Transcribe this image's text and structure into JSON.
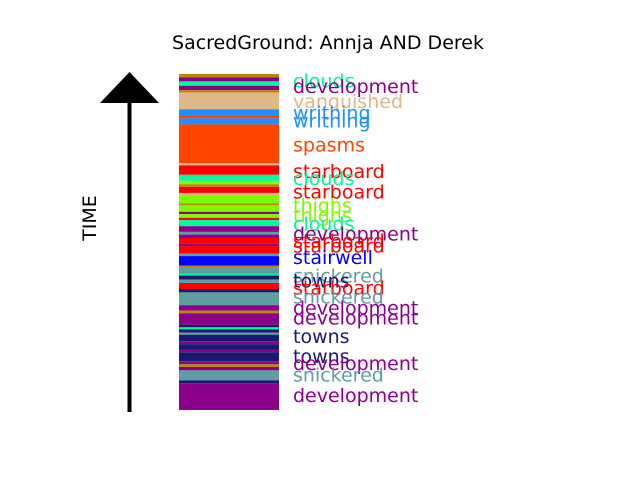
{
  "chart_data": {
    "type": "bar",
    "title": "SacredGround: Annja AND Derek",
    "ylabel": "TIME",
    "xlabel": "",
    "arrow": "up",
    "colors": {
      "development": "#8b008b",
      "clouds": "#00fa9a",
      "vanquished": "#deb887",
      "writhing": "#1e90ff",
      "spasms": "#ff4500",
      "starboard": "#ff0000",
      "thighs": "#7cfc00",
      "stairwell": "#0000ff",
      "snickered": "#5f9ea0",
      "towns": "#191970",
      "filler": "#b8860b"
    },
    "labels": [
      {
        "text": "clouds",
        "term": "clouds",
        "pos": 0.98
      },
      {
        "text": "development",
        "term": "development",
        "pos": 0.965
      },
      {
        "text": "vanquished",
        "term": "vanquished",
        "pos": 0.92
      },
      {
        "text": "writhing",
        "term": "writhing",
        "pos": 0.885
      },
      {
        "text": "writhing",
        "term": "writhing",
        "pos": 0.862
      },
      {
        "text": "spasms",
        "term": "spasms",
        "pos": 0.79
      },
      {
        "text": "starboard",
        "term": "starboard",
        "pos": 0.712
      },
      {
        "text": "clouds",
        "term": "clouds",
        "pos": 0.69
      },
      {
        "text": "starboard",
        "term": "starboard",
        "pos": 0.65
      },
      {
        "text": "thighs",
        "term": "thighs",
        "pos": 0.61
      },
      {
        "text": "thighs",
        "term": "thighs",
        "pos": 0.58
      },
      {
        "text": "clouds",
        "term": "clouds",
        "pos": 0.555
      },
      {
        "text": "development",
        "term": "development",
        "pos": 0.525
      },
      {
        "text": "starboard",
        "term": "starboard",
        "pos": 0.505
      },
      {
        "text": "starboard",
        "term": "starboard",
        "pos": 0.49
      },
      {
        "text": "stairwell",
        "term": "stairwell",
        "pos": 0.455
      },
      {
        "text": "snickered",
        "term": "snickered",
        "pos": 0.4
      },
      {
        "text": "towns",
        "term": "towns",
        "pos": 0.385
      },
      {
        "text": "starboard",
        "term": "starboard",
        "pos": 0.365
      },
      {
        "text": "snickered",
        "term": "snickered",
        "pos": 0.338
      },
      {
        "text": "development",
        "term": "development",
        "pos": 0.305
      },
      {
        "text": "development",
        "term": "development",
        "pos": 0.275
      },
      {
        "text": "towns",
        "term": "towns",
        "pos": 0.22
      },
      {
        "text": "towns",
        "term": "towns",
        "pos": 0.16
      },
      {
        "text": "development",
        "term": "development",
        "pos": 0.14
      },
      {
        "text": "snickered",
        "term": "snickered",
        "pos": 0.105
      },
      {
        "text": "development",
        "term": "development",
        "pos": 0.045
      }
    ],
    "bands": [
      {
        "term": "filler",
        "start": 0.99,
        "end": 1.0
      },
      {
        "term": "development",
        "start": 0.978,
        "end": 0.99
      },
      {
        "term": "clouds",
        "start": 0.965,
        "end": 0.978
      },
      {
        "term": "development",
        "start": 0.952,
        "end": 0.965
      },
      {
        "term": "filler",
        "start": 0.945,
        "end": 0.952
      },
      {
        "term": "vanquished",
        "start": 0.895,
        "end": 0.945
      },
      {
        "term": "writhing",
        "start": 0.875,
        "end": 0.895
      },
      {
        "term": "spasms",
        "start": 0.868,
        "end": 0.875
      },
      {
        "term": "writhing",
        "start": 0.85,
        "end": 0.868
      },
      {
        "term": "spasms",
        "start": 0.735,
        "end": 0.85
      },
      {
        "term": "vanquished",
        "start": 0.728,
        "end": 0.735
      },
      {
        "term": "starboard",
        "start": 0.7,
        "end": 0.728
      },
      {
        "term": "clouds",
        "start": 0.682,
        "end": 0.7
      },
      {
        "term": "thighs",
        "start": 0.672,
        "end": 0.682
      },
      {
        "term": "filler",
        "start": 0.664,
        "end": 0.672
      },
      {
        "term": "starboard",
        "start": 0.646,
        "end": 0.664
      },
      {
        "term": "vanquished",
        "start": 0.64,
        "end": 0.646
      },
      {
        "term": "thighs",
        "start": 0.615,
        "end": 0.64
      },
      {
        "term": "filler",
        "start": 0.609,
        "end": 0.615
      },
      {
        "term": "thighs",
        "start": 0.59,
        "end": 0.609
      },
      {
        "term": "development",
        "start": 0.583,
        "end": 0.59
      },
      {
        "term": "thighs",
        "start": 0.572,
        "end": 0.583
      },
      {
        "term": "starboard",
        "start": 0.565,
        "end": 0.572
      },
      {
        "term": "clouds",
        "start": 0.547,
        "end": 0.565
      },
      {
        "term": "development",
        "start": 0.53,
        "end": 0.547
      },
      {
        "term": "snickered",
        "start": 0.522,
        "end": 0.53
      },
      {
        "term": "development",
        "start": 0.512,
        "end": 0.522
      },
      {
        "term": "starboard",
        "start": 0.495,
        "end": 0.512
      },
      {
        "term": "development",
        "start": 0.488,
        "end": 0.495
      },
      {
        "term": "starboard",
        "start": 0.465,
        "end": 0.488
      },
      {
        "term": "snickered",
        "start": 0.458,
        "end": 0.465
      },
      {
        "term": "stairwell",
        "start": 0.43,
        "end": 0.458
      },
      {
        "term": "filler",
        "start": 0.424,
        "end": 0.43
      },
      {
        "term": "snickered",
        "start": 0.405,
        "end": 0.424
      },
      {
        "term": "clouds",
        "start": 0.4,
        "end": 0.405
      },
      {
        "term": "towns",
        "start": 0.388,
        "end": 0.4
      },
      {
        "term": "snickered",
        "start": 0.378,
        "end": 0.388
      },
      {
        "term": "starboard",
        "start": 0.36,
        "end": 0.378
      },
      {
        "term": "towns",
        "start": 0.35,
        "end": 0.36
      },
      {
        "term": "snickered",
        "start": 0.312,
        "end": 0.35
      },
      {
        "term": "development",
        "start": 0.296,
        "end": 0.312
      },
      {
        "term": "filler",
        "start": 0.288,
        "end": 0.296
      },
      {
        "term": "development",
        "start": 0.254,
        "end": 0.288
      },
      {
        "term": "towns",
        "start": 0.246,
        "end": 0.254
      },
      {
        "term": "clouds",
        "start": 0.24,
        "end": 0.246
      },
      {
        "term": "towns",
        "start": 0.23,
        "end": 0.24
      },
      {
        "term": "snickered",
        "start": 0.224,
        "end": 0.23
      },
      {
        "term": "towns",
        "start": 0.205,
        "end": 0.224
      },
      {
        "term": "development",
        "start": 0.196,
        "end": 0.205
      },
      {
        "term": "towns",
        "start": 0.18,
        "end": 0.196
      },
      {
        "term": "development",
        "start": 0.172,
        "end": 0.18
      },
      {
        "term": "towns",
        "start": 0.145,
        "end": 0.172
      },
      {
        "term": "development",
        "start": 0.136,
        "end": 0.145
      },
      {
        "term": "filler",
        "start": 0.128,
        "end": 0.136
      },
      {
        "term": "development",
        "start": 0.118,
        "end": 0.128
      },
      {
        "term": "snickered",
        "start": 0.088,
        "end": 0.118
      },
      {
        "term": "towns",
        "start": 0.08,
        "end": 0.088
      },
      {
        "term": "development",
        "start": 0.0,
        "end": 0.08
      }
    ]
  }
}
